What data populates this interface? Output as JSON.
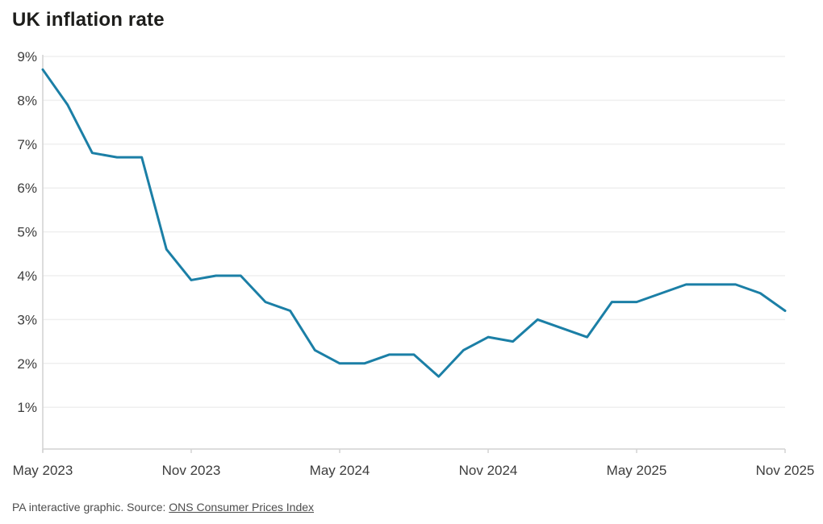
{
  "page": {
    "title": "UK inflation rate"
  },
  "footer": {
    "prefix": "PA interactive graphic. Source: ",
    "source_link": "ONS Consumer Prices Index"
  },
  "chart_data": {
    "type": "line",
    "title": "UK inflation rate",
    "x": [
      "May 2023",
      "Jun 2023",
      "Jul 2023",
      "Aug 2023",
      "Sep 2023",
      "Oct 2023",
      "Nov 2023",
      "Dec 2023",
      "Jan 2024",
      "Feb 2024",
      "Mar 2024",
      "Apr 2024",
      "May 2024",
      "Jun 2024",
      "Jul 2024",
      "Aug 2024",
      "Sep 2024",
      "Oct 2024",
      "Nov 2024",
      "Dec 2024",
      "Jan 2025",
      "Feb 2025",
      "Mar 2025",
      "Apr 2025",
      "May 2025",
      "Jun 2025",
      "Jul 2025",
      "Aug 2025",
      "Sep 2025",
      "Oct 2025",
      "Nov 2025"
    ],
    "series": [
      {
        "name": "UK inflation rate (CPI annual %)",
        "values": [
          8.7,
          7.9,
          6.8,
          6.7,
          6.7,
          4.6,
          3.9,
          4.0,
          4.0,
          3.4,
          3.2,
          2.3,
          2.0,
          2.0,
          2.2,
          2.2,
          1.7,
          2.3,
          2.6,
          2.5,
          3.0,
          2.8,
          2.6,
          3.4,
          3.4,
          3.6,
          3.8,
          3.8,
          3.8,
          3.6,
          3.2
        ]
      }
    ],
    "xticks": [
      {
        "label": "May 2023",
        "index": 0
      },
      {
        "label": "Nov 2023",
        "index": 6
      },
      {
        "label": "May 2024",
        "index": 12
      },
      {
        "label": "Nov 2024",
        "index": 18
      },
      {
        "label": "May 2025",
        "index": 24
      },
      {
        "label": "Nov 2025",
        "index": 30
      }
    ],
    "yticks": [
      9,
      8,
      7,
      6,
      5,
      4,
      3,
      2,
      1
    ],
    "ytick_suffix": "%",
    "ylim": [
      0,
      9
    ],
    "xlabel": "",
    "ylabel": "",
    "grid": true,
    "legend": "none",
    "line_color": "#1b7fa6",
    "colors": {
      "grid": "#efefef",
      "axis": "#d2d2d2",
      "tick_label": "#3d3d3d",
      "title": "#1d1d1b",
      "footer": "#4d4d4d"
    }
  }
}
